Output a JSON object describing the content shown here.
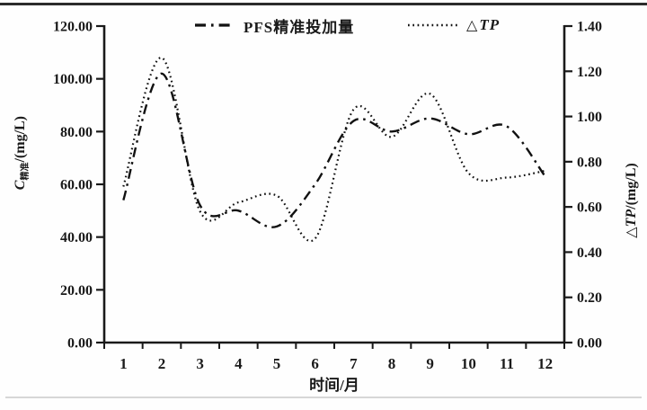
{
  "figure": {
    "background": "#fefefe",
    "ink_color": "#1a1a1a",
    "top_border_color": "#2b2b2b"
  },
  "chart_data": {
    "type": "line",
    "smoothed": true,
    "grid": false,
    "x": [
      1,
      2,
      3,
      4,
      5,
      6,
      7,
      8,
      9,
      10,
      11,
      12
    ],
    "x_tick_labels": [
      "1",
      "2",
      "3",
      "4",
      "5",
      "6",
      "7",
      "8",
      "9",
      "10",
      "11",
      "12"
    ],
    "xlabel": "时间/月",
    "y_left": {
      "label_main": "C",
      "label_sub": "精准",
      "label_unit": "/(mg/L)",
      "range": [
        0,
        120
      ],
      "tick_step": 20,
      "tick_labels": [
        "0.00",
        "20.00",
        "40.00",
        "60.00",
        "80.00",
        "100.00",
        "120.00"
      ]
    },
    "y_right": {
      "label_symbol": "△",
      "label_main": "TP",
      "label_unit": "/(mg/L)",
      "range": [
        0,
        1.4
      ],
      "tick_step": 0.2,
      "tick_labels": [
        "0.00",
        "0.20",
        "0.40",
        "0.60",
        "0.80",
        "1.00",
        "1.20",
        "1.40"
      ]
    },
    "series": [
      {
        "name": "PFS精准投加量",
        "axis": "left",
        "line_style": "dash-dot",
        "color": "#111111",
        "values": [
          54,
          102,
          52,
          50,
          44,
          60,
          84,
          80,
          85,
          79,
          82,
          63
        ]
      },
      {
        "name": "△TP",
        "axis": "right",
        "line_style": "dotted",
        "color": "#111111",
        "values": [
          0.69,
          1.26,
          0.58,
          0.62,
          0.65,
          0.46,
          1.03,
          0.91,
          1.1,
          0.75,
          0.73,
          0.76
        ]
      }
    ],
    "legend": {
      "position": "top",
      "items": [
        {
          "symbol": "",
          "label": "PFS精准投加量",
          "line_style": "dash-dot"
        },
        {
          "symbol": "△",
          "label": "TP",
          "line_style": "dotted"
        }
      ]
    }
  }
}
